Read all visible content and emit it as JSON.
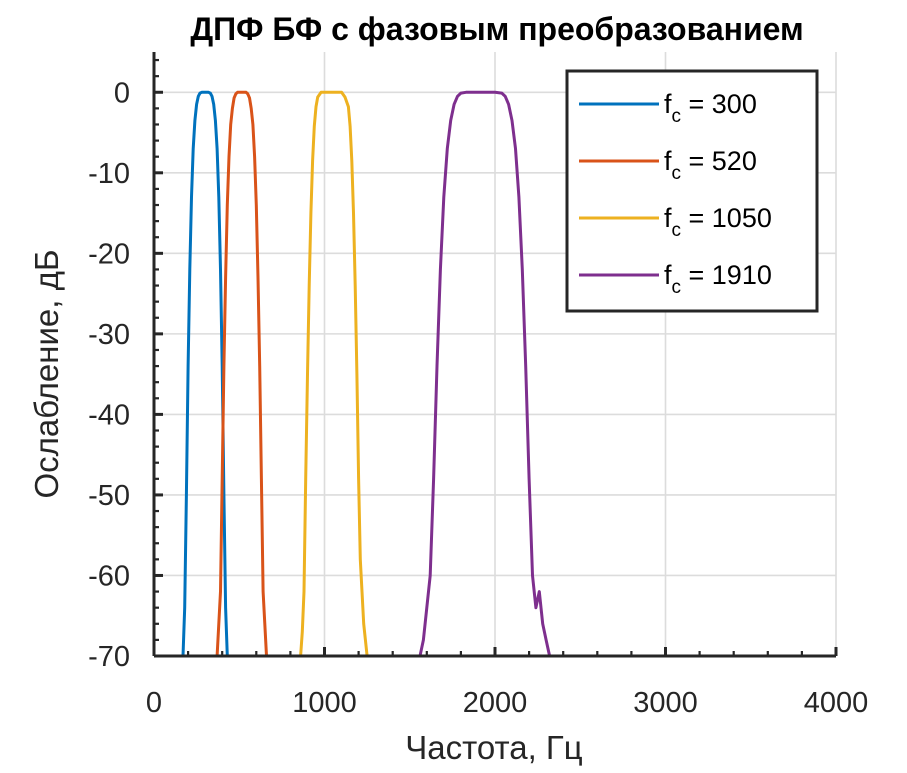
{
  "chart_data": {
    "type": "line",
    "title": "ДПФ БФ с фазовым преобразованием",
    "xlabel": "Частота, Гц",
    "ylabel": "Ослабление, дБ",
    "xlim": [
      0,
      4000
    ],
    "ylim": [
      -70,
      5
    ],
    "xticks": [
      "0",
      "1000",
      "2000",
      "3000",
      "4000"
    ],
    "yticks": [
      "0",
      "-10",
      "-20",
      "-30",
      "-40",
      "-50",
      "-60",
      "-70"
    ],
    "grid": true,
    "legend_position": "top-right",
    "series": [
      {
        "name": "f_c = 300",
        "label_main": "f",
        "label_sub": "c",
        "label_rest": " = 300",
        "color": "#0072BD",
        "x": [
          170,
          180,
          190,
          200,
          210,
          220,
          230,
          240,
          250,
          260,
          270,
          280,
          290,
          300,
          310,
          320,
          330,
          340,
          350,
          360,
          370,
          380,
          390,
          400,
          410,
          420,
          430,
          440
        ],
        "y": [
          -70,
          -64,
          -50,
          -34,
          -22,
          -13,
          -7,
          -3.5,
          -1.5,
          -0.5,
          -0.1,
          0,
          0,
          0,
          0,
          0,
          -0.1,
          -0.5,
          -1.5,
          -3.5,
          -7,
          -13,
          -22,
          -34,
          -50,
          -64,
          -70,
          -70
        ]
      },
      {
        "name": "f_c = 520",
        "label_main": "f",
        "label_sub": "c",
        "label_rest": " = 520",
        "color": "#D95319",
        "x": [
          370,
          380,
          390,
          400,
          410,
          420,
          430,
          440,
          450,
          460,
          470,
          480,
          490,
          500,
          510,
          520,
          530,
          540,
          550,
          560,
          570,
          580,
          590,
          600,
          610,
          620,
          630,
          640,
          650,
          660,
          670,
          680
        ],
        "y": [
          -70,
          -66,
          -62,
          -48,
          -34,
          -23,
          -14,
          -8,
          -4,
          -2,
          -0.7,
          -0.2,
          0,
          0,
          0,
          0,
          0,
          0,
          -0.2,
          -0.7,
          -2,
          -4,
          -8,
          -14,
          -23,
          -34,
          -48,
          -62,
          -66,
          -70,
          -70,
          -70
        ]
      },
      {
        "name": "f_c = 1050",
        "label_main": "f",
        "label_sub": "c",
        "label_rest": " = 1050",
        "color": "#EDB120",
        "x": [
          860,
          870,
          880,
          890,
          900,
          910,
          920,
          930,
          940,
          950,
          960,
          980,
          1000,
          1020,
          1050,
          1080,
          1100,
          1120,
          1140,
          1150,
          1160,
          1170,
          1180,
          1190,
          1200,
          1210,
          1220,
          1230,
          1240,
          1250,
          1260,
          1270
        ],
        "y": [
          -70,
          -67,
          -62,
          -48,
          -35,
          -24,
          -15,
          -8.5,
          -4.2,
          -1.8,
          -0.6,
          0,
          0,
          0,
          0,
          0,
          0,
          -0.6,
          -1.8,
          -4.2,
          -8.5,
          -15,
          -24,
          -35,
          -48,
          -58,
          -62,
          -66,
          -68,
          -70,
          -70,
          -70
        ]
      },
      {
        "name": "f_c = 1910",
        "label_main": "f",
        "label_sub": "c",
        "label_rest": " = 1910",
        "color": "#7E2F8E",
        "x": [
          1560,
          1580,
          1600,
          1620,
          1640,
          1660,
          1680,
          1700,
          1720,
          1740,
          1760,
          1780,
          1800,
          1830,
          1860,
          1900,
          1950,
          2000,
          2040,
          2060,
          2080,
          2100,
          2120,
          2140,
          2160,
          2180,
          2200,
          2220,
          2240,
          2260,
          2280,
          2300,
          2320
        ],
        "y": [
          -70,
          -68,
          -64,
          -60,
          -48,
          -34,
          -22,
          -13,
          -7,
          -3.5,
          -1.5,
          -0.5,
          -0.1,
          0,
          0,
          0,
          0,
          0,
          -0.1,
          -0.5,
          -1.5,
          -3.5,
          -7,
          -13,
          -22,
          -34,
          -48,
          -60,
          -64,
          -62,
          -66,
          -68,
          -70
        ]
      }
    ]
  }
}
